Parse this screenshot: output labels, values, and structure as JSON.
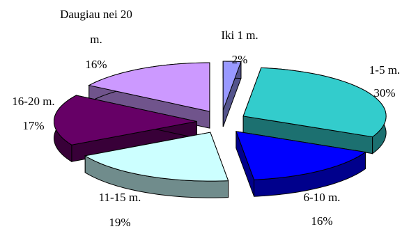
{
  "chart_data": {
    "type": "pie",
    "style": "3d-exploded",
    "title": "",
    "slices": [
      {
        "label": "Iki 1 m.",
        "value": 2,
        "value_label": "2%",
        "color": "#9999ff"
      },
      {
        "label": "1-5 m.",
        "value": 30,
        "value_label": "30%",
        "color": "#33cccc"
      },
      {
        "label": "6-10 m.",
        "value": 16,
        "value_label": "16%",
        "color": "#0000ff"
      },
      {
        "label": "11-15 m.",
        "value": 19,
        "value_label": "19%",
        "color": "#ccffff"
      },
      {
        "label": "16-20 m.",
        "value": 17,
        "value_label": "17%",
        "color": "#660066"
      },
      {
        "label": "Daugiau nei 20 m.",
        "value": 16,
        "value_label": "16%",
        "color": "#cc99ff"
      }
    ]
  }
}
